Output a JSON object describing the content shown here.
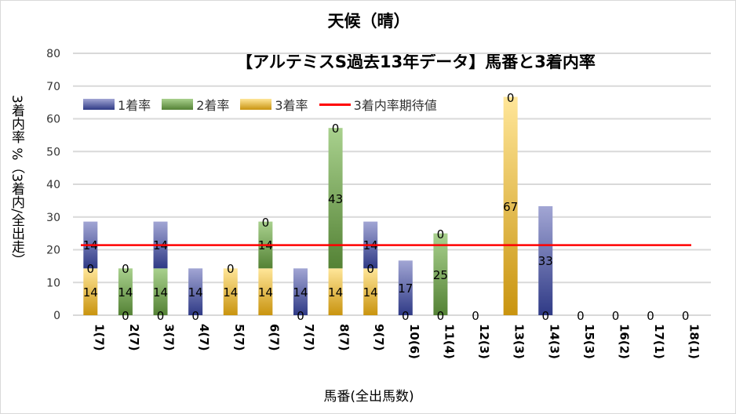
{
  "chart_data": {
    "type": "bar",
    "stacked": true,
    "title": "天候（晴）",
    "subtitle": "【アルテミスS過去13年データ】馬番と3着内率",
    "xlabel": "馬番(全出馬数)",
    "ylabel": "3着内率 %（3着内/全出走）",
    "ylim": [
      0,
      80
    ],
    "yticks": [
      "0",
      "10",
      "20",
      "30",
      "40",
      "50",
      "60",
      "70",
      "80"
    ],
    "grid": true,
    "legend_position": "top-left",
    "categories": [
      "1(7)",
      "2(7)",
      "3(7)",
      "4(7)",
      "5(7)",
      "6(7)",
      "7(7)",
      "8(7)",
      "9(7)",
      "10(6)",
      "11(4)",
      "12(3)",
      "13(3)",
      "14(3)",
      "15(3)",
      "16(2)",
      "17(1)",
      "18(1)"
    ],
    "series": [
      {
        "name": "3着率",
        "color": "#c9940f",
        "values": [
          14.3,
          0,
          0,
          0,
          14.3,
          14.3,
          0,
          14.3,
          14.3,
          0,
          0,
          0,
          66.7,
          0,
          0,
          0,
          0,
          0
        ]
      },
      {
        "name": "2着率",
        "color": "#548235",
        "values": [
          0,
          14.3,
          14.3,
          0,
          0,
          14.3,
          0,
          42.9,
          0,
          0,
          25,
          0,
          0,
          0,
          0,
          0,
          0,
          0
        ]
      },
      {
        "name": "1着率",
        "color": "#2f3a86",
        "values": [
          14.3,
          0,
          14.3,
          14.3,
          0,
          0,
          14.3,
          0,
          14.3,
          16.7,
          0,
          0,
          0,
          33.3,
          0,
          0,
          0,
          0
        ]
      }
    ],
    "legend_order": [
      "1着率",
      "2着率",
      "3着率",
      "3着内率期待値"
    ],
    "reference_line": {
      "name": "3着内率期待値",
      "value": 21.4,
      "color": "#ff0000"
    }
  }
}
